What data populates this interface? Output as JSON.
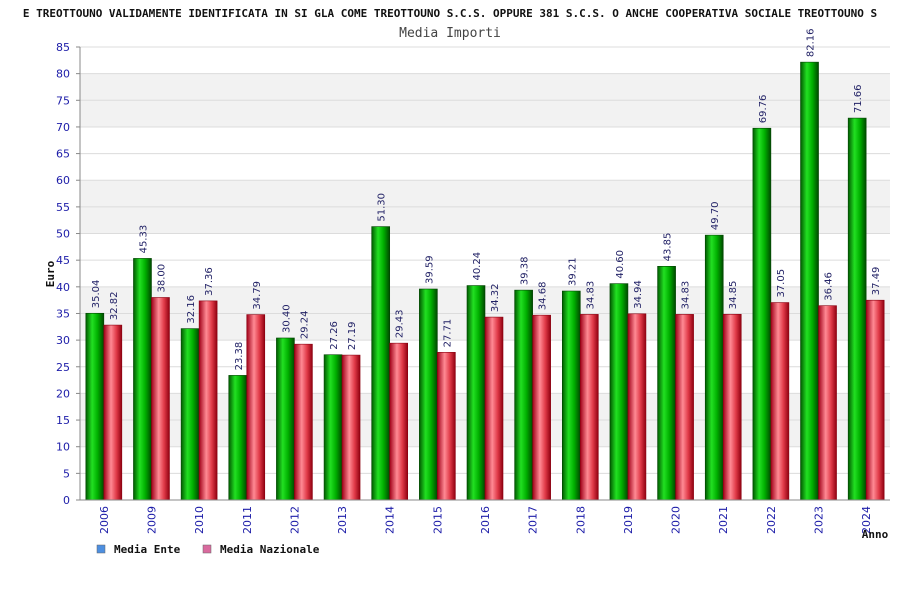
{
  "chart_data": {
    "type": "bar",
    "title": "E TREOTTOUNO VALIDAMENTE IDENTIFICATA IN SI GLA COME TREOTTOUNO S.C.S. OPPURE 381 S.C.S. O ANCHE COOPERATIVA SOCIALE TREOTTOUNO S",
    "subtitle": "Media Importi",
    "xlabel": "Anno",
    "ylabel": "Euro",
    "ylim": [
      0,
      85
    ],
    "yticks": [
      "0",
      "5",
      "10",
      "15",
      "20",
      "25",
      "30",
      "35",
      "40",
      "45",
      "50",
      "55",
      "60",
      "65",
      "70",
      "75",
      "80",
      "85"
    ],
    "grid": true,
    "categories": [
      "2006",
      "2009",
      "2010",
      "2011",
      "2012",
      "2013",
      "2014",
      "2015",
      "2016",
      "2017",
      "2018",
      "2019",
      "2020",
      "2021",
      "2022",
      "2023",
      "2024"
    ],
    "series": [
      {
        "name": "Media Ente",
        "color": "#00b400",
        "legend_color": "#4d8fe0",
        "values": [
          35.04,
          45.33,
          32.16,
          23.38,
          30.4,
          27.26,
          51.3,
          39.59,
          40.24,
          39.38,
          39.21,
          40.6,
          43.85,
          49.7,
          69.76,
          82.16,
          71.66
        ],
        "labels": [
          "35.04",
          "45.33",
          "32.16",
          "23.38",
          "30.40",
          "27.26",
          "51.30",
          "39.59",
          "40.24",
          "39.38",
          "39.21",
          "40.60",
          "43.85",
          "49.70",
          "69.76",
          "82.16",
          "71.66"
        ]
      },
      {
        "name": "Media Nazionale",
        "color": "#e0303c",
        "legend_color": "#d96a9e",
        "values": [
          32.82,
          38.0,
          37.36,
          34.79,
          29.24,
          27.19,
          29.43,
          27.71,
          34.32,
          34.68,
          34.83,
          34.94,
          34.83,
          34.85,
          37.05,
          36.46,
          37.49
        ],
        "labels": [
          "32.82",
          "38.00",
          "37.36",
          "34.79",
          "29.24",
          "27.19",
          "29.43",
          "27.71",
          "34.32",
          "34.68",
          "34.83",
          "34.94",
          "34.83",
          "34.85",
          "37.05",
          "36.46",
          "37.49"
        ]
      }
    ],
    "legend": {
      "position": "bottom-left"
    }
  }
}
